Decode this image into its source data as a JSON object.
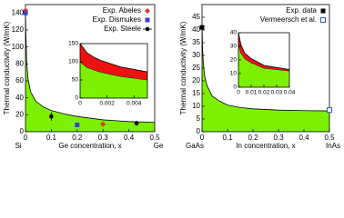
{
  "chart_data": [
    {
      "type": "area",
      "y_label": "Thermal conductivity (W/mK)",
      "x_label": "Ge concentration, x",
      "xend_labels": [
        "Si",
        "Ge"
      ],
      "xlim": [
        0,
        0.5
      ],
      "xticks": [
        0,
        0.1,
        0.2,
        0.3,
        0.4,
        0.5
      ],
      "ylim": [
        0,
        150
      ],
      "yticks": [
        0,
        20,
        40,
        60,
        80,
        100,
        120,
        140
      ],
      "legend": "upper right",
      "series": [
        {
          "kind": "area",
          "color": "#7cf000",
          "x": [
            0,
            0.002,
            0.005,
            0.01,
            0.02,
            0.04,
            0.07,
            0.1,
            0.15,
            0.2,
            0.3,
            0.4,
            0.5
          ],
          "values": [
            140,
            110,
            80,
            62,
            47,
            36,
            29,
            25,
            21,
            18,
            14,
            12,
            11
          ]
        },
        {
          "kind": "points",
          "name": "Exp. Abeles",
          "marker": "diamond",
          "color": "#e03030",
          "x": [
            0,
            0.3
          ],
          "values": [
            143,
            9
          ]
        },
        {
          "kind": "points",
          "name": "Exp. Dismukes",
          "marker": "square",
          "color": "#4040d0",
          "x": [
            0,
            0.2
          ],
          "values": [
            140,
            8
          ]
        },
        {
          "kind": "points",
          "name": "Exp. Steele",
          "marker": "circle",
          "color": "#000000",
          "x": [
            0.1,
            0.43
          ],
          "values": [
            18,
            10
          ],
          "errors": [
            5,
            3
          ]
        }
      ],
      "inset": {
        "xlim": [
          0,
          0.005
        ],
        "xticks": [
          0,
          0.002,
          0.004
        ],
        "ylim": [
          0,
          150
        ],
        "yticks": [
          0,
          50,
          100,
          150
        ],
        "series": [
          {
            "kind": "area",
            "color": "#7cf000",
            "x": [
              0,
              0.0005,
              0.001,
              0.0015,
              0.002,
              0.003,
              0.004,
              0.005
            ],
            "values": [
              100,
              85,
              78,
              72,
              68,
              60,
              55,
              50
            ]
          },
          {
            "kind": "area",
            "color": "#ee1111",
            "x": [
              0,
              0.0005,
              0.001,
              0.0015,
              0.002,
              0.003,
              0.004,
              0.005
            ],
            "values": [
              50,
              40,
              35,
              32,
              30,
              26,
              24,
              22
            ]
          }
        ]
      }
    },
    {
      "type": "area",
      "y_label": "Thermal conductivity (W/mK)",
      "x_label": "In concentration, x",
      "xend_labels": [
        "GaAs",
        "InAs"
      ],
      "xlim": [
        0,
        0.5
      ],
      "xticks": [
        0,
        0.1,
        0.2,
        0.3,
        0.4,
        0.5
      ],
      "ylim": [
        0,
        50
      ],
      "yticks": [
        0,
        5,
        10,
        15,
        20,
        25,
        30,
        35,
        40,
        45
      ],
      "legend": "upper right",
      "series": [
        {
          "kind": "area",
          "color": "#7cf000",
          "x": [
            0,
            0.002,
            0.005,
            0.01,
            0.02,
            0.04,
            0.07,
            0.1,
            0.15,
            0.2,
            0.3,
            0.4,
            0.5
          ],
          "values": [
            42,
            33,
            27,
            22,
            18,
            14,
            12,
            10.5,
            9.5,
            9,
            8.5,
            8.3,
            8.2
          ]
        },
        {
          "kind": "points",
          "name": "Exp. data",
          "marker": "square",
          "color": "#000000",
          "x": [
            0
          ],
          "values": [
            41
          ]
        },
        {
          "kind": "points",
          "name": "Vermeersch et al.",
          "marker": "open-square",
          "color": "#3050c0",
          "x": [
            0.5
          ],
          "values": [
            8.5
          ]
        }
      ],
      "inset": {
        "xlim": [
          0,
          0.04
        ],
        "xticks": [
          0,
          0.01,
          0.02,
          0.03,
          0.04
        ],
        "ylim": [
          0,
          40
        ],
        "yticks": [
          0,
          10,
          20,
          30,
          40
        ],
        "series": [
          {
            "kind": "area",
            "color": "#7cf000",
            "x": [
              0,
              0.002,
              0.005,
              0.01,
              0.015,
              0.02,
              0.03,
              0.04
            ],
            "values": [
              32,
              25,
              21,
              18,
              16,
              14,
              13,
              12
            ]
          },
          {
            "kind": "area",
            "color": "#ee1111",
            "x": [
              0,
              0.002,
              0.005,
              0.01,
              0.015,
              0.02,
              0.03,
              0.04
            ],
            "values": [
              8,
              6,
              4,
              3,
              2.5,
              2,
              1.5,
              1
            ]
          }
        ]
      }
    }
  ]
}
